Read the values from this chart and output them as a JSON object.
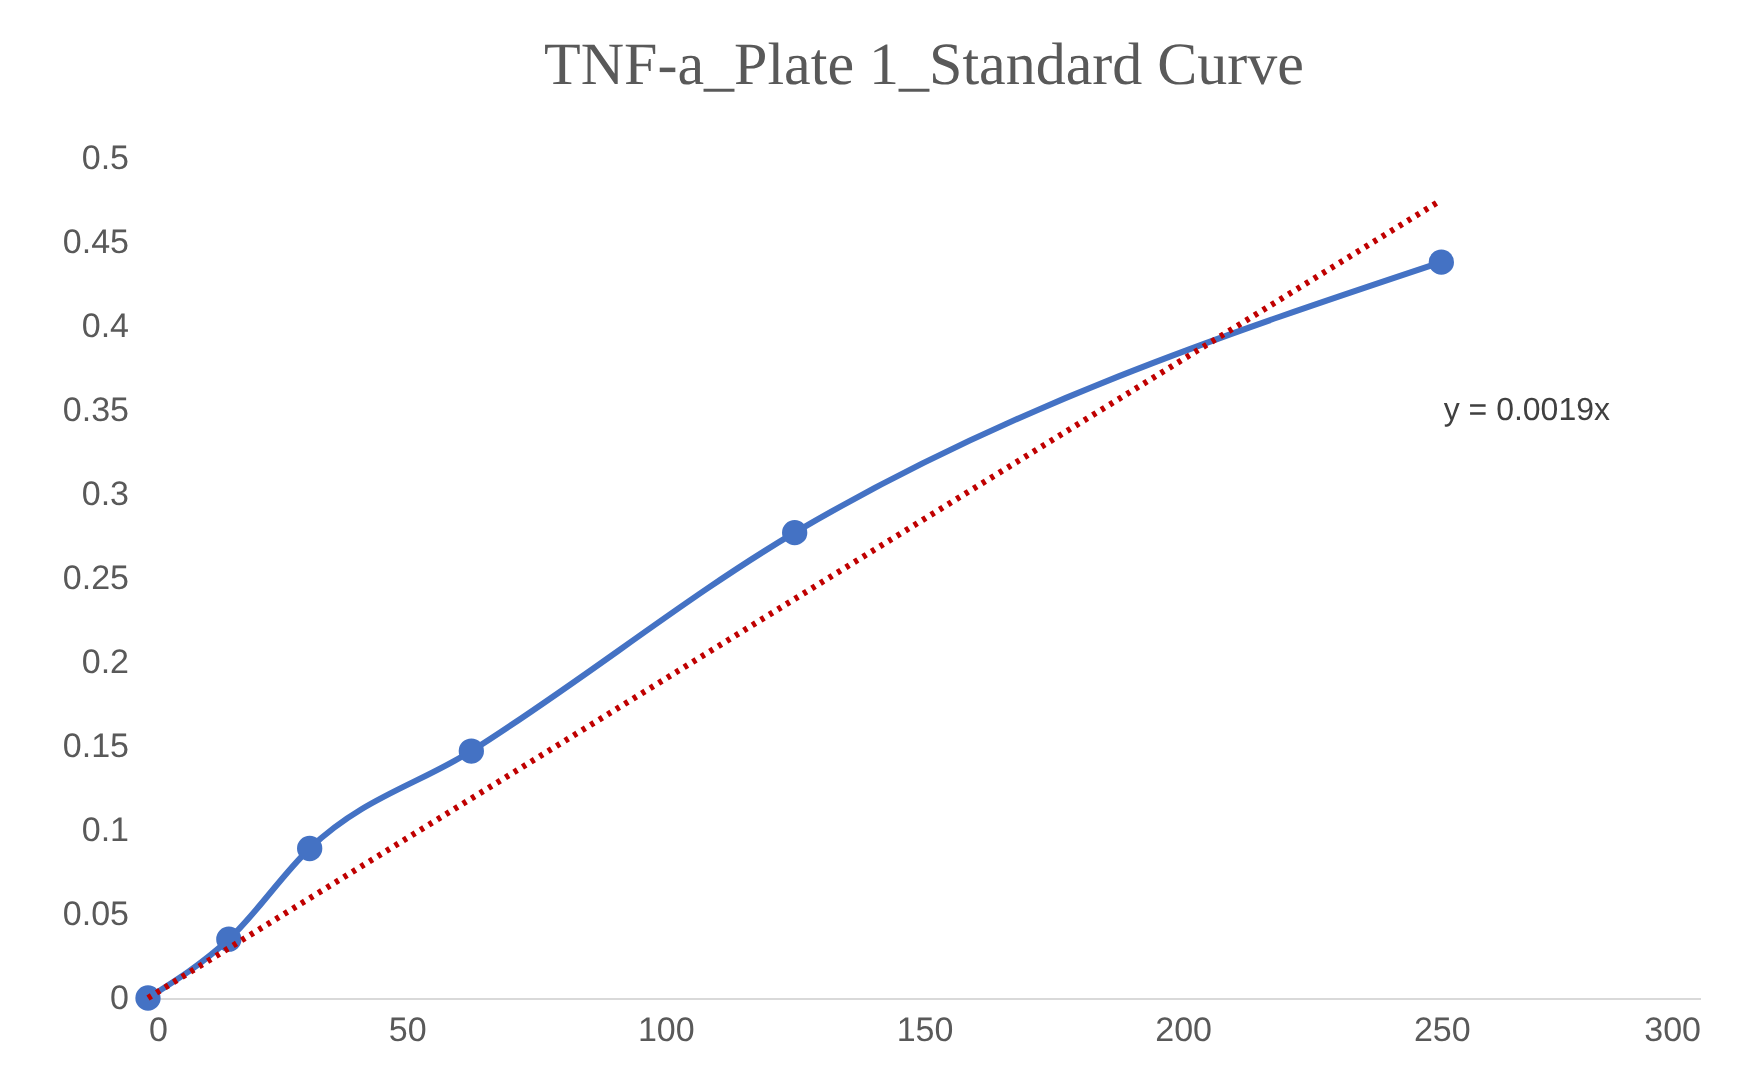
{
  "chart_data": {
    "type": "line",
    "title": "TNF-a_Plate 1_Standard Curve",
    "marker": "circle",
    "grid": false,
    "xlim": [
      0,
      300
    ],
    "xticks": [
      0,
      50,
      100,
      150,
      200,
      250,
      300
    ],
    "ylim": [
      0,
      0.5
    ],
    "yticks": [
      0,
      0.05,
      0.1,
      0.15,
      0.2,
      0.25,
      0.3,
      0.35,
      0.4,
      0.45,
      0.5
    ],
    "annotations": [
      "y = 0.0019x"
    ],
    "series": [
      {
        "color": "#4472c4",
        "x": [
          0,
          15.625,
          31.25,
          62.5,
          125,
          250
        ],
        "values": [
          0,
          0.035,
          0.089,
          0.147,
          0.277,
          0.438
        ]
      },
      {
        "type": "line",
        "color": "#c00000",
        "line_style": "dotted",
        "marker": "none",
        "x": [
          0,
          250
        ],
        "values": [
          0,
          0.475
        ]
      }
    ]
  }
}
